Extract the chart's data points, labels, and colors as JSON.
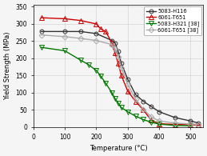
{
  "series": [
    {
      "label": "5083-H116",
      "color": "#333333",
      "marker": "o",
      "markersize": 3.5,
      "linestyle": "-",
      "linewidth": 1.0,
      "fillstyle": "none",
      "x": [
        25,
        100,
        150,
        200,
        250,
        260,
        270,
        280,
        300,
        325,
        350,
        375,
        400,
        450,
        500,
        525
      ],
      "y": [
        278,
        278,
        278,
        272,
        252,
        245,
        220,
        185,
        140,
        95,
        75,
        60,
        45,
        28,
        18,
        12
      ]
    },
    {
      "label": "6061-T651",
      "color": "#cc0000",
      "marker": "^",
      "markersize": 4,
      "linestyle": "-",
      "linewidth": 1.0,
      "fillstyle": "none",
      "x": [
        25,
        100,
        150,
        200,
        215,
        230,
        250,
        260,
        270,
        280,
        300,
        325,
        350,
        375,
        400,
        450,
        500,
        525
      ],
      "y": [
        318,
        315,
        310,
        300,
        285,
        278,
        245,
        215,
        185,
        150,
        105,
        75,
        50,
        20,
        10,
        8,
        7,
        6
      ]
    },
    {
      "label": "5083-H321 [38]",
      "color": "#007700",
      "marker": "v",
      "markersize": 4,
      "linestyle": "-",
      "linewidth": 1.0,
      "fillstyle": "none",
      "x": [
        25,
        100,
        150,
        175,
        200,
        215,
        230,
        250,
        260,
        270,
        280,
        300,
        325,
        350,
        375,
        400,
        450,
        500
      ],
      "y": [
        232,
        222,
        195,
        182,
        165,
        148,
        128,
        100,
        83,
        70,
        57,
        45,
        32,
        22,
        14,
        9,
        5,
        4
      ]
    },
    {
      "label": "6061-T651 [38]",
      "color": "#aaaaaa",
      "marker": "D",
      "markersize": 3.5,
      "linestyle": "-",
      "linewidth": 1.0,
      "fillstyle": "none",
      "x": [
        25,
        100,
        150,
        200,
        250,
        260,
        270,
        280,
        300,
        325,
        350,
        375,
        400,
        450,
        500,
        525
      ],
      "y": [
        268,
        263,
        258,
        252,
        240,
        228,
        205,
        172,
        125,
        82,
        52,
        30,
        18,
        12,
        9,
        8
      ]
    }
  ],
  "xlabel": "Temperature (°C)",
  "ylabel": "Yield Strength (MPa)",
  "xlim": [
    0,
    540
  ],
  "ylim": [
    0,
    355
  ],
  "xticks": [
    0,
    100,
    200,
    300,
    400,
    500
  ],
  "yticks": [
    0,
    50,
    100,
    150,
    200,
    250,
    300,
    350
  ],
  "grid": true,
  "bg_color": "#f5f5f5",
  "plot_bg": "#f5f5f5",
  "legend_fontsize": 4.8,
  "axis_fontsize": 6.0,
  "tick_fontsize": 5.5
}
